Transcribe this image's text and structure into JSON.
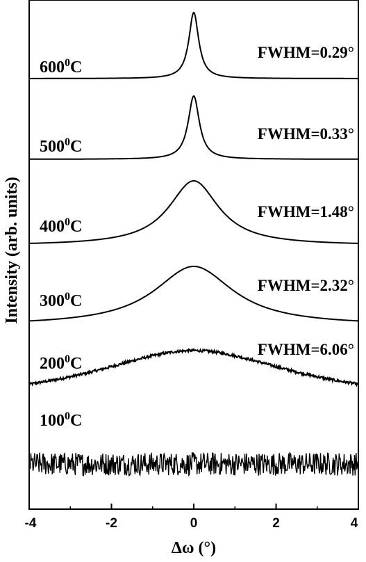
{
  "chart_data": {
    "type": "line",
    "title": "",
    "xlabel": "Δω (°)",
    "ylabel": "Intensity (arb. units)",
    "xlim": [
      -4,
      4
    ],
    "xticks": [
      -4,
      -2,
      0,
      2,
      4
    ],
    "yticks": [],
    "grid": false,
    "legend": "none",
    "line_color": "#000000",
    "series": [
      {
        "temp": "600",
        "fwhm_label": "FWHM=0.29°",
        "fwhm": 0.29,
        "noise": 0.0
      },
      {
        "temp": "500",
        "fwhm_label": "FWHM=0.33°",
        "fwhm": 0.33,
        "noise": 0.0
      },
      {
        "temp": "400",
        "fwhm_label": "FWHM=1.48°",
        "fwhm": 1.48,
        "noise": 0.0
      },
      {
        "temp": "300",
        "fwhm_label": "FWHM=2.32°",
        "fwhm": 2.32,
        "noise": 0.0
      },
      {
        "temp": "200",
        "fwhm_label": "FWHM=6.06°",
        "fwhm": 6.06,
        "noise": 0.05
      },
      {
        "temp": "100",
        "fwhm_label": "",
        "fwhm": 0,
        "noise": 1.0
      }
    ],
    "temp_superscript": "0",
    "temp_unit": "C"
  }
}
